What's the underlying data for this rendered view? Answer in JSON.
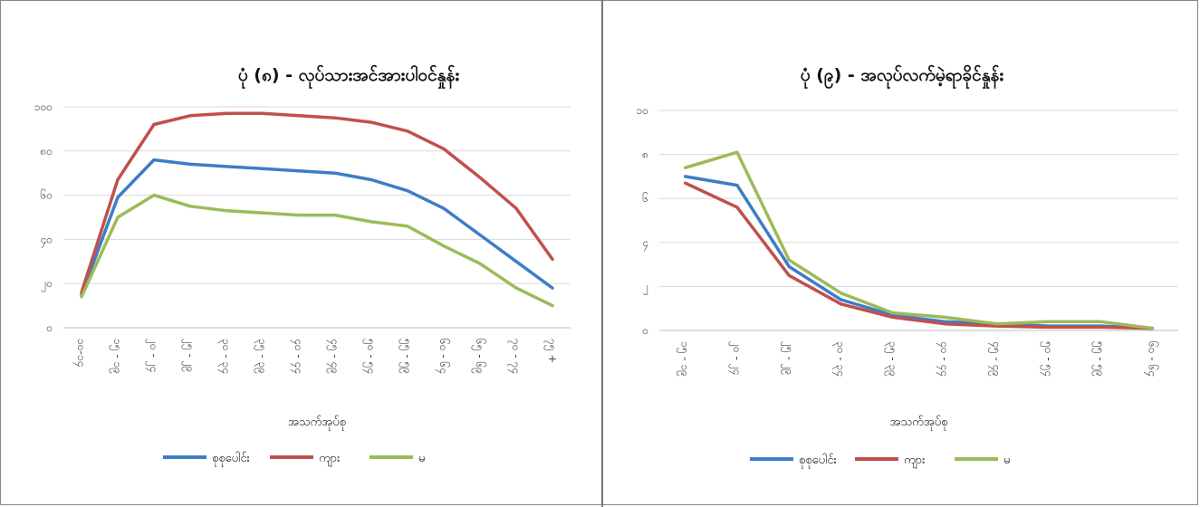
{
  "charts": [
    {
      "title": "ပုံ (၈) - လုပ်သားအင်အားပါဝင်နှုန်း",
      "xlabel": "အသက်အုပ်စု",
      "series_colors": [
        "#3d7dc7",
        "#c0504d",
        "#9bbb59"
      ],
      "chart_data": {
        "type": "line",
        "categories": [
          "၁၀-၁၄",
          "၁၅ - ၁၉",
          "၂၀ - ၂၄",
          "၂၅ - ၂၉",
          "၃၀ - ၃၄",
          "၃၅ - ၃၉",
          "၄၀ - ၄၄",
          "၄၅ - ၄၉",
          "၅၀ - ၅၄",
          "၅၅ - ၅၉",
          "၆၀ - ၆၄",
          "၆၅ - ၆၉",
          "၇၀ - ၇၄",
          "၇၅ +"
        ],
        "ylim": [
          0,
          100
        ],
        "yticks": [
          0,
          20,
          40,
          60,
          80,
          100
        ],
        "ytick_labels": [
          "၀",
          "၂၀",
          "၄၀",
          "၆၀",
          "၈၀",
          "၁၀၀"
        ],
        "grid": true,
        "legend_position": "bottom",
        "series": [
          {
            "name": "စုစုပေါင်း",
            "values": [
              15,
              59,
              76,
              74,
              73,
              72,
              71,
              70,
              67,
              62,
              54,
              42,
              30,
              18
            ]
          },
          {
            "name": "ကျား",
            "values": [
              16,
              67,
              92,
              96,
              97,
              97,
              96,
              95,
              93,
              89,
              81,
              68,
              54,
              31
            ]
          },
          {
            "name": "မ",
            "values": [
              14,
              50,
              60,
              55,
              53,
              52,
              51,
              51,
              48,
              46,
              37,
              29,
              18,
              10
            ]
          }
        ]
      }
    },
    {
      "title": "ပုံ (၉) - အလုပ်လက်မဲ့ရာခိုင်နှုန်း",
      "xlabel": "အသက်အုပ်စု",
      "series_colors": [
        "#3d7dc7",
        "#c0504d",
        "#9bbb59"
      ],
      "chart_data": {
        "type": "line",
        "categories": [
          "၁၅ - ၁၉",
          "၂၀ - ၂၄",
          "၂၅ - ၂၉",
          "၃၀ - ၃၄",
          "၃၅ - ၃၉",
          "၄၀ - ၄၄",
          "၄၅ - ၄၉",
          "၅၀ - ၅၄",
          "၅၅ - ၅၉",
          "၆၀ - ၆၄"
        ],
        "ylim": [
          0,
          10
        ],
        "yticks": [
          0,
          2,
          4,
          6,
          8,
          10
        ],
        "ytick_labels": [
          "၀",
          "၂",
          "၄",
          "၆",
          "၈",
          "၁၀"
        ],
        "grid": true,
        "legend_position": "bottom",
        "series": [
          {
            "name": "စုစုပေါင်း",
            "values": [
              7.0,
              6.6,
              2.9,
              1.4,
              0.7,
              0.4,
              0.3,
              0.2,
              0.2,
              0.1
            ]
          },
          {
            "name": "ကျား",
            "values": [
              6.7,
              5.6,
              2.5,
              1.2,
              0.6,
              0.3,
              0.2,
              0.15,
              0.15,
              0.1
            ]
          },
          {
            "name": "မ",
            "values": [
              7.4,
              8.1,
              3.2,
              1.7,
              0.8,
              0.6,
              0.3,
              0.4,
              0.4,
              0.1
            ]
          }
        ]
      }
    }
  ]
}
